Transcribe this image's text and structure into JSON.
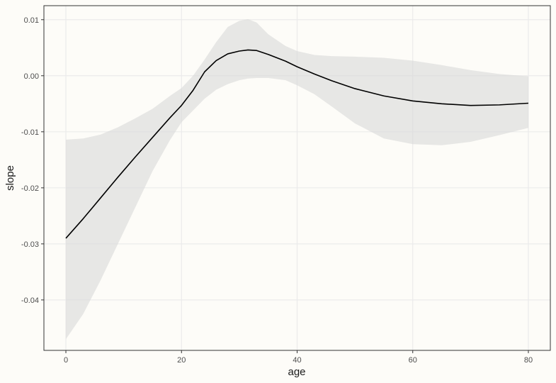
{
  "chart_data": {
    "type": "line",
    "title": "",
    "xlabel": "age",
    "ylabel": "slope",
    "xlim": [
      -3.8,
      83.8
    ],
    "ylim": [
      -0.049,
      0.0125
    ],
    "x_ticks": [
      0,
      20,
      40,
      60,
      80
    ],
    "x_tick_labels": [
      "0",
      "20",
      "40",
      "60",
      "80"
    ],
    "y_ticks": [
      -0.04,
      -0.03,
      -0.02,
      -0.01,
      0.0,
      0.01
    ],
    "y_tick_labels": [
      "-0.04",
      "-0.03",
      "-0.02",
      "-0.01",
      "0.00",
      "0.01"
    ],
    "grid": true,
    "legend": "none",
    "colors": {
      "line": "#000000",
      "ribbon": "#d9d9d9",
      "grid": "#ebebeb",
      "panel_border": "#333333",
      "background": "#fdfcf8"
    },
    "series": [
      {
        "x": [
          0,
          3,
          6,
          9,
          12,
          15,
          18,
          20,
          22,
          24,
          26,
          28,
          30,
          31.5,
          33,
          35,
          38,
          40,
          43,
          46,
          50,
          55,
          60,
          65,
          70,
          75,
          80
        ],
        "y": [
          -0.029,
          -0.0255,
          -0.0218,
          -0.0181,
          -0.0145,
          -0.011,
          -0.0075,
          -0.0053,
          -0.0026,
          0.0007,
          0.0027,
          0.0039,
          0.0044,
          0.0046,
          0.0045,
          0.0038,
          0.0026,
          0.0016,
          0.0003,
          -0.0009,
          -0.0023,
          -0.0036,
          -0.0045,
          -0.005,
          -0.0053,
          -0.0052,
          -0.0049
        ],
        "lower": [
          -0.047,
          -0.0425,
          -0.0365,
          -0.03,
          -0.0235,
          -0.017,
          -0.0115,
          -0.0083,
          -0.0062,
          -0.0041,
          -0.0025,
          -0.0015,
          -0.0008,
          -0.0005,
          -0.0004,
          -0.0004,
          -0.0008,
          -0.0017,
          -0.0033,
          -0.0055,
          -0.0085,
          -0.0112,
          -0.0122,
          -0.0124,
          -0.0118,
          -0.0106,
          -0.0093
        ],
        "upper": [
          -0.0114,
          -0.0112,
          -0.0105,
          -0.0092,
          -0.0076,
          -0.0059,
          -0.0036,
          -0.0022,
          0.0,
          0.0029,
          0.006,
          0.0087,
          0.0098,
          0.0101,
          0.0095,
          0.0074,
          0.0053,
          0.0044,
          0.0037,
          0.0035,
          0.0034,
          0.0032,
          0.0027,
          0.0019,
          0.001,
          0.0003,
          -0.0001
        ]
      }
    ]
  }
}
